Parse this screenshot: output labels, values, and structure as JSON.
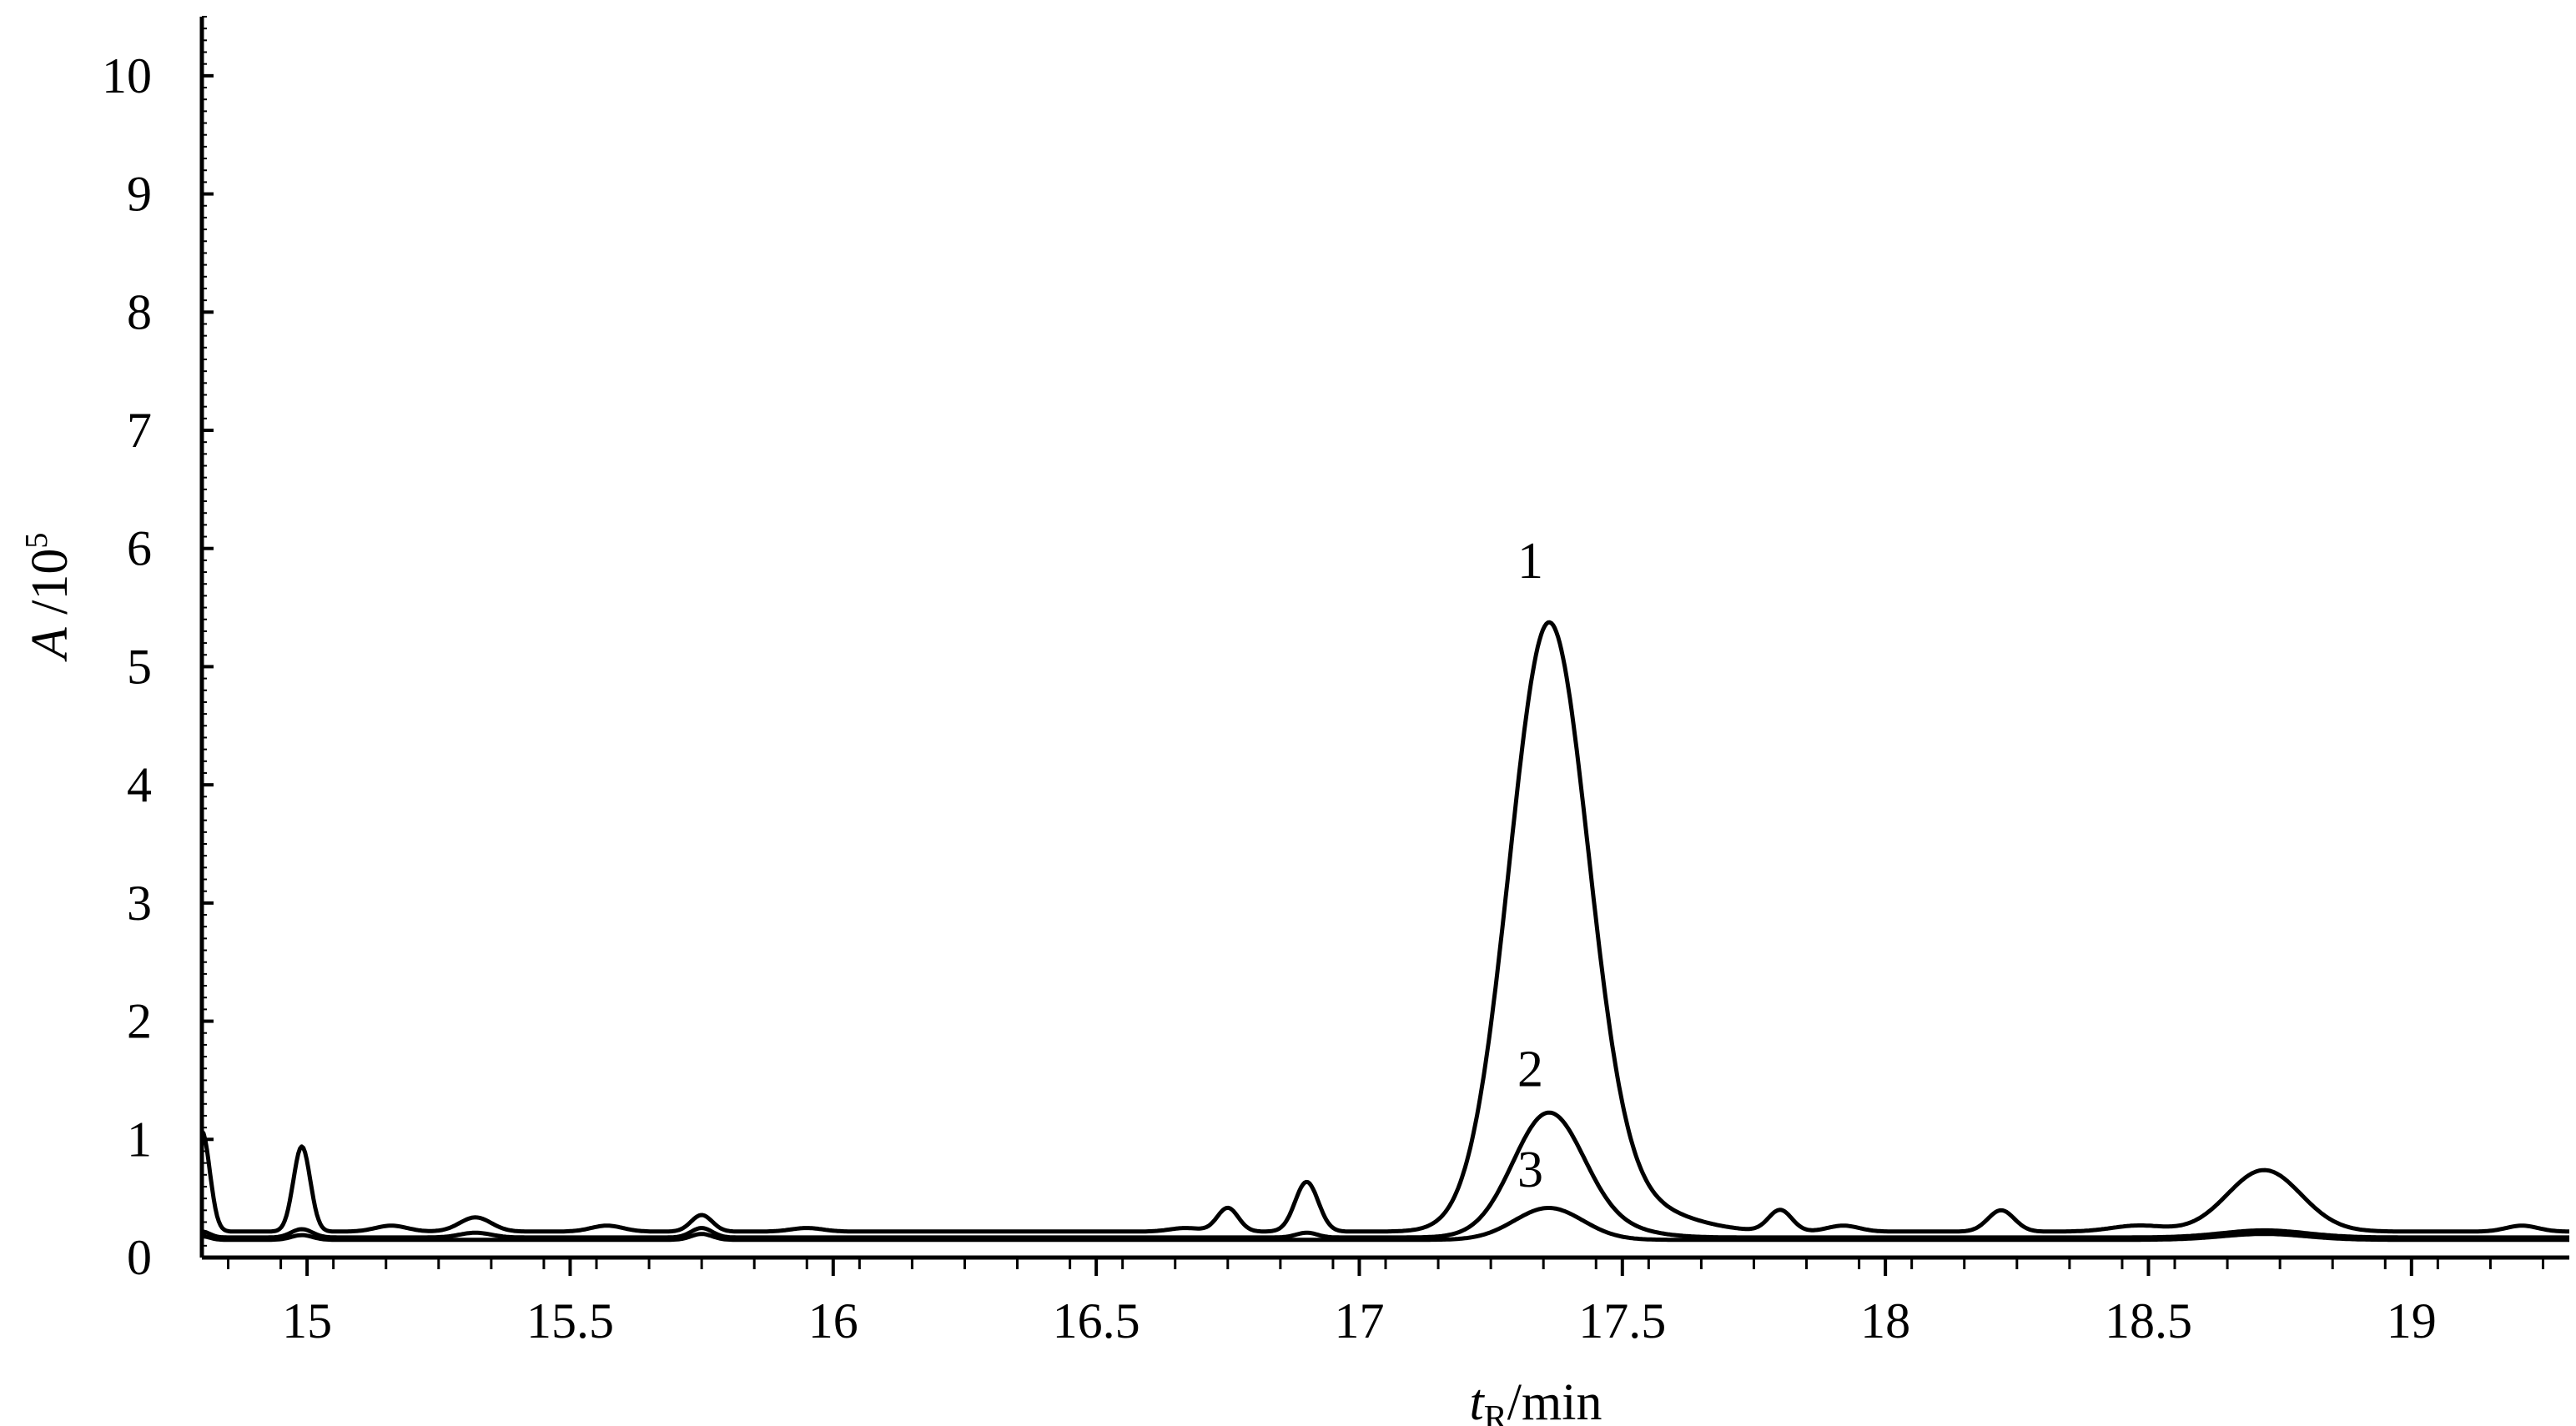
{
  "chart_data": {
    "type": "line",
    "title": "",
    "xlabel": {
      "main": "t",
      "sub": "R",
      "rest": "/min"
    },
    "ylabel": {
      "main": "A",
      "rest": " /10",
      "sup": "5"
    },
    "xlim": [
      14.8,
      19.3
    ],
    "ylim": [
      0,
      10.5
    ],
    "xticks": [
      15,
      15.5,
      16,
      16.5,
      17,
      17.5,
      18,
      18.5,
      19
    ],
    "xtick_labels": [
      "15",
      "15.5",
      "16",
      "16.5",
      "17",
      "17.5",
      "18",
      "18.5",
      "19"
    ],
    "yticks": [
      0,
      1,
      2,
      3,
      4,
      5,
      6,
      7,
      8,
      9,
      10
    ],
    "ytick_labels": [
      "0",
      "1",
      "2",
      "3",
      "4",
      "5",
      "6",
      "7",
      "8",
      "9",
      "10"
    ],
    "grid": false,
    "legend": "none",
    "series": [
      {
        "label": "1",
        "baseline": 0.22,
        "peaks": [
          [
            14.8,
            0.85,
            0.015
          ],
          [
            14.99,
            0.72,
            0.016
          ],
          [
            15.16,
            0.05,
            0.03
          ],
          [
            15.32,
            0.12,
            0.03
          ],
          [
            15.57,
            0.05,
            0.03
          ],
          [
            15.75,
            0.14,
            0.02
          ],
          [
            15.95,
            0.03,
            0.03
          ],
          [
            16.67,
            0.03,
            0.03
          ],
          [
            16.75,
            0.2,
            0.02
          ],
          [
            16.9,
            0.42,
            0.022
          ],
          [
            17.36,
            5.1,
            0.075
          ],
          [
            17.52,
            0.2,
            0.1
          ],
          [
            17.8,
            0.18,
            0.022
          ],
          [
            17.92,
            0.05,
            0.03
          ],
          [
            18.22,
            0.18,
            0.025
          ],
          [
            18.48,
            0.05,
            0.05
          ],
          [
            18.72,
            0.52,
            0.07
          ],
          [
            19.21,
            0.05,
            0.03
          ]
        ]
      },
      {
        "label": "2",
        "baseline": 0.17,
        "peaks": [
          [
            14.8,
            0.05,
            0.015
          ],
          [
            14.99,
            0.07,
            0.02
          ],
          [
            15.32,
            0.04,
            0.03
          ],
          [
            15.75,
            0.08,
            0.02
          ],
          [
            16.9,
            0.04,
            0.02
          ],
          [
            17.36,
            1.05,
            0.068
          ],
          [
            17.5,
            0.05,
            0.07
          ],
          [
            18.72,
            0.06,
            0.08
          ]
        ]
      },
      {
        "label": "3",
        "baseline": 0.15,
        "peaks": [
          [
            14.8,
            0.03,
            0.015
          ],
          [
            14.99,
            0.04,
            0.02
          ],
          [
            15.75,
            0.05,
            0.02
          ],
          [
            17.36,
            0.27,
            0.065
          ],
          [
            18.72,
            0.05,
            0.08
          ]
        ]
      }
    ],
    "annotations": [
      {
        "text": "1",
        "x": 17.36,
        "y": 5.75
      },
      {
        "text": "2",
        "x": 17.36,
        "y": 1.45
      },
      {
        "text": "3",
        "x": 17.36,
        "y": 0.6
      }
    ]
  }
}
